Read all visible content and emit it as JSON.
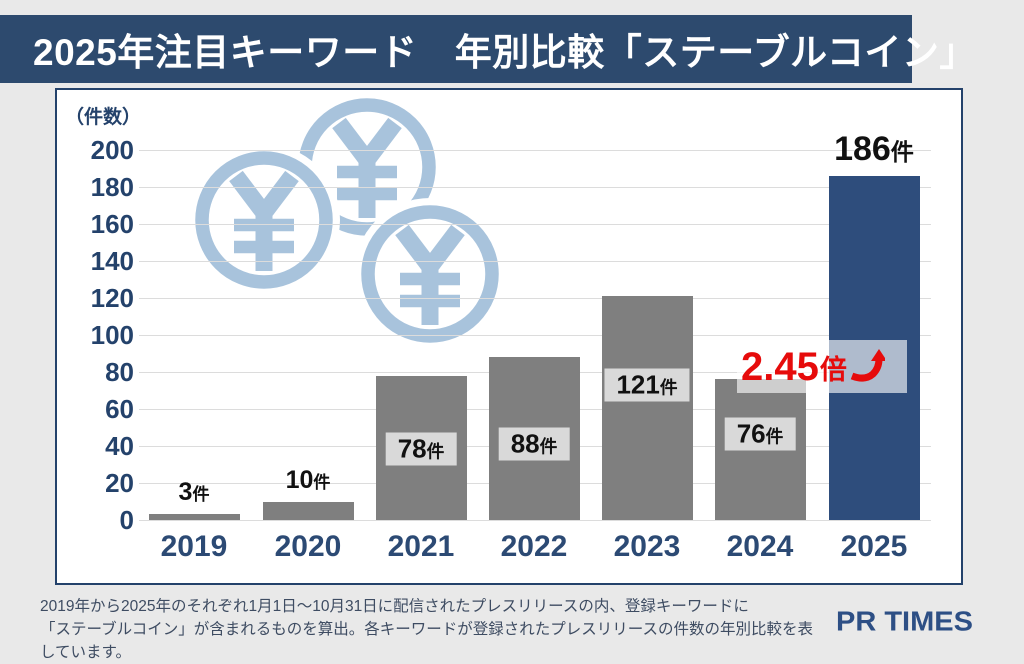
{
  "header": {
    "title": "2025年注目キーワード　年別比較「ステーブルコイン」",
    "bg": "#2d4a6e",
    "fg": "#ffffff"
  },
  "chart_data": {
    "type": "bar",
    "title": "2025年注目キーワード　年別比較「ステーブルコイン」",
    "unit_label": "（件数）",
    "unit_suffix": "件",
    "categories": [
      "2019",
      "2020",
      "2021",
      "2022",
      "2023",
      "2024",
      "2025"
    ],
    "values": [
      3,
      10,
      78,
      88,
      121,
      76,
      186
    ],
    "ylim": [
      0,
      200
    ],
    "yticks": [
      0,
      20,
      40,
      60,
      80,
      100,
      120,
      140,
      160,
      180,
      200
    ],
    "grid": true,
    "legend": "none",
    "bar_color": "#7f7f7f",
    "highlight_index": 6,
    "highlight_color": "#2e4d7c",
    "label_box_color": "#d9d9d9",
    "axis_color": "#24426b",
    "annotation": {
      "value": "2.45",
      "suffix": "倍",
      "icon": "up-right-arrow",
      "color": "#e60b0b"
    }
  },
  "watermark": {
    "name": "yen-coins",
    "symbol": "¥",
    "color": "#a8c3dc"
  },
  "footer": {
    "line1": "2019年から2025年のそれぞれ1月1日～10月31日に配信されたプレスリリースの内、登録キーワードに",
    "line2": "「ステーブルコイン」が含まれるものを算出。各キーワードが登録されたプレスリリースの件数の年別比較を表しています。",
    "logo": "PR TIMES"
  }
}
